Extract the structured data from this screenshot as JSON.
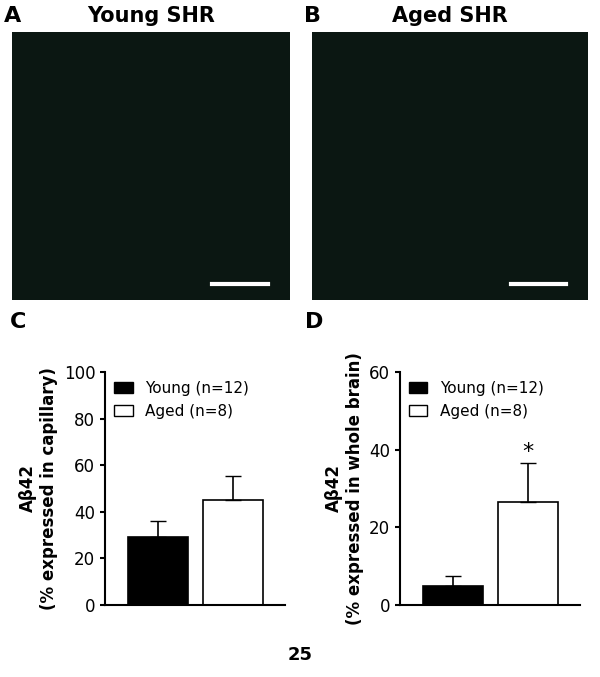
{
  "images": [
    {
      "panel": "A",
      "title": "Young SHR"
    },
    {
      "panel": "B",
      "title": "Aged SHR"
    }
  ],
  "chart_data": [
    {
      "panel": "C",
      "type": "bar",
      "y_label": "Aβ42\n(% expressed in capillary)",
      "series": [
        {
          "name": "Young (n=12)",
          "color": "#000000",
          "values": [
            29
          ],
          "error": [
            7
          ]
        },
        {
          "name": "Aged (n=8)",
          "color": "#ffffff",
          "values": [
            45
          ],
          "error": [
            10.5
          ]
        }
      ],
      "ylim": [
        0,
        100
      ],
      "yticks": [
        0,
        20,
        40,
        60,
        80,
        100
      ],
      "legend": "upper left",
      "tick_labels": "y"
    },
    {
      "panel": "D",
      "type": "bar",
      "y_label": "Aβ42\n(% expressed in whole brain)",
      "series": [
        {
          "name": "Young (n=12)",
          "color": "#000000",
          "values": [
            5
          ],
          "error": [
            2.5
          ]
        },
        {
          "name": "Aged (n=8)",
          "color": "#ffffff",
          "values": [
            26.5
          ],
          "error": [
            10
          ]
        }
      ],
      "ylim": [
        0,
        60
      ],
      "yticks": [
        0,
        20,
        40,
        60
      ],
      "legend": "upper left",
      "tick_labels": "y",
      "annotations": [
        {
          "text": "*",
          "series": "Aged (n=8)"
        }
      ]
    }
  ],
  "page_number": "25"
}
